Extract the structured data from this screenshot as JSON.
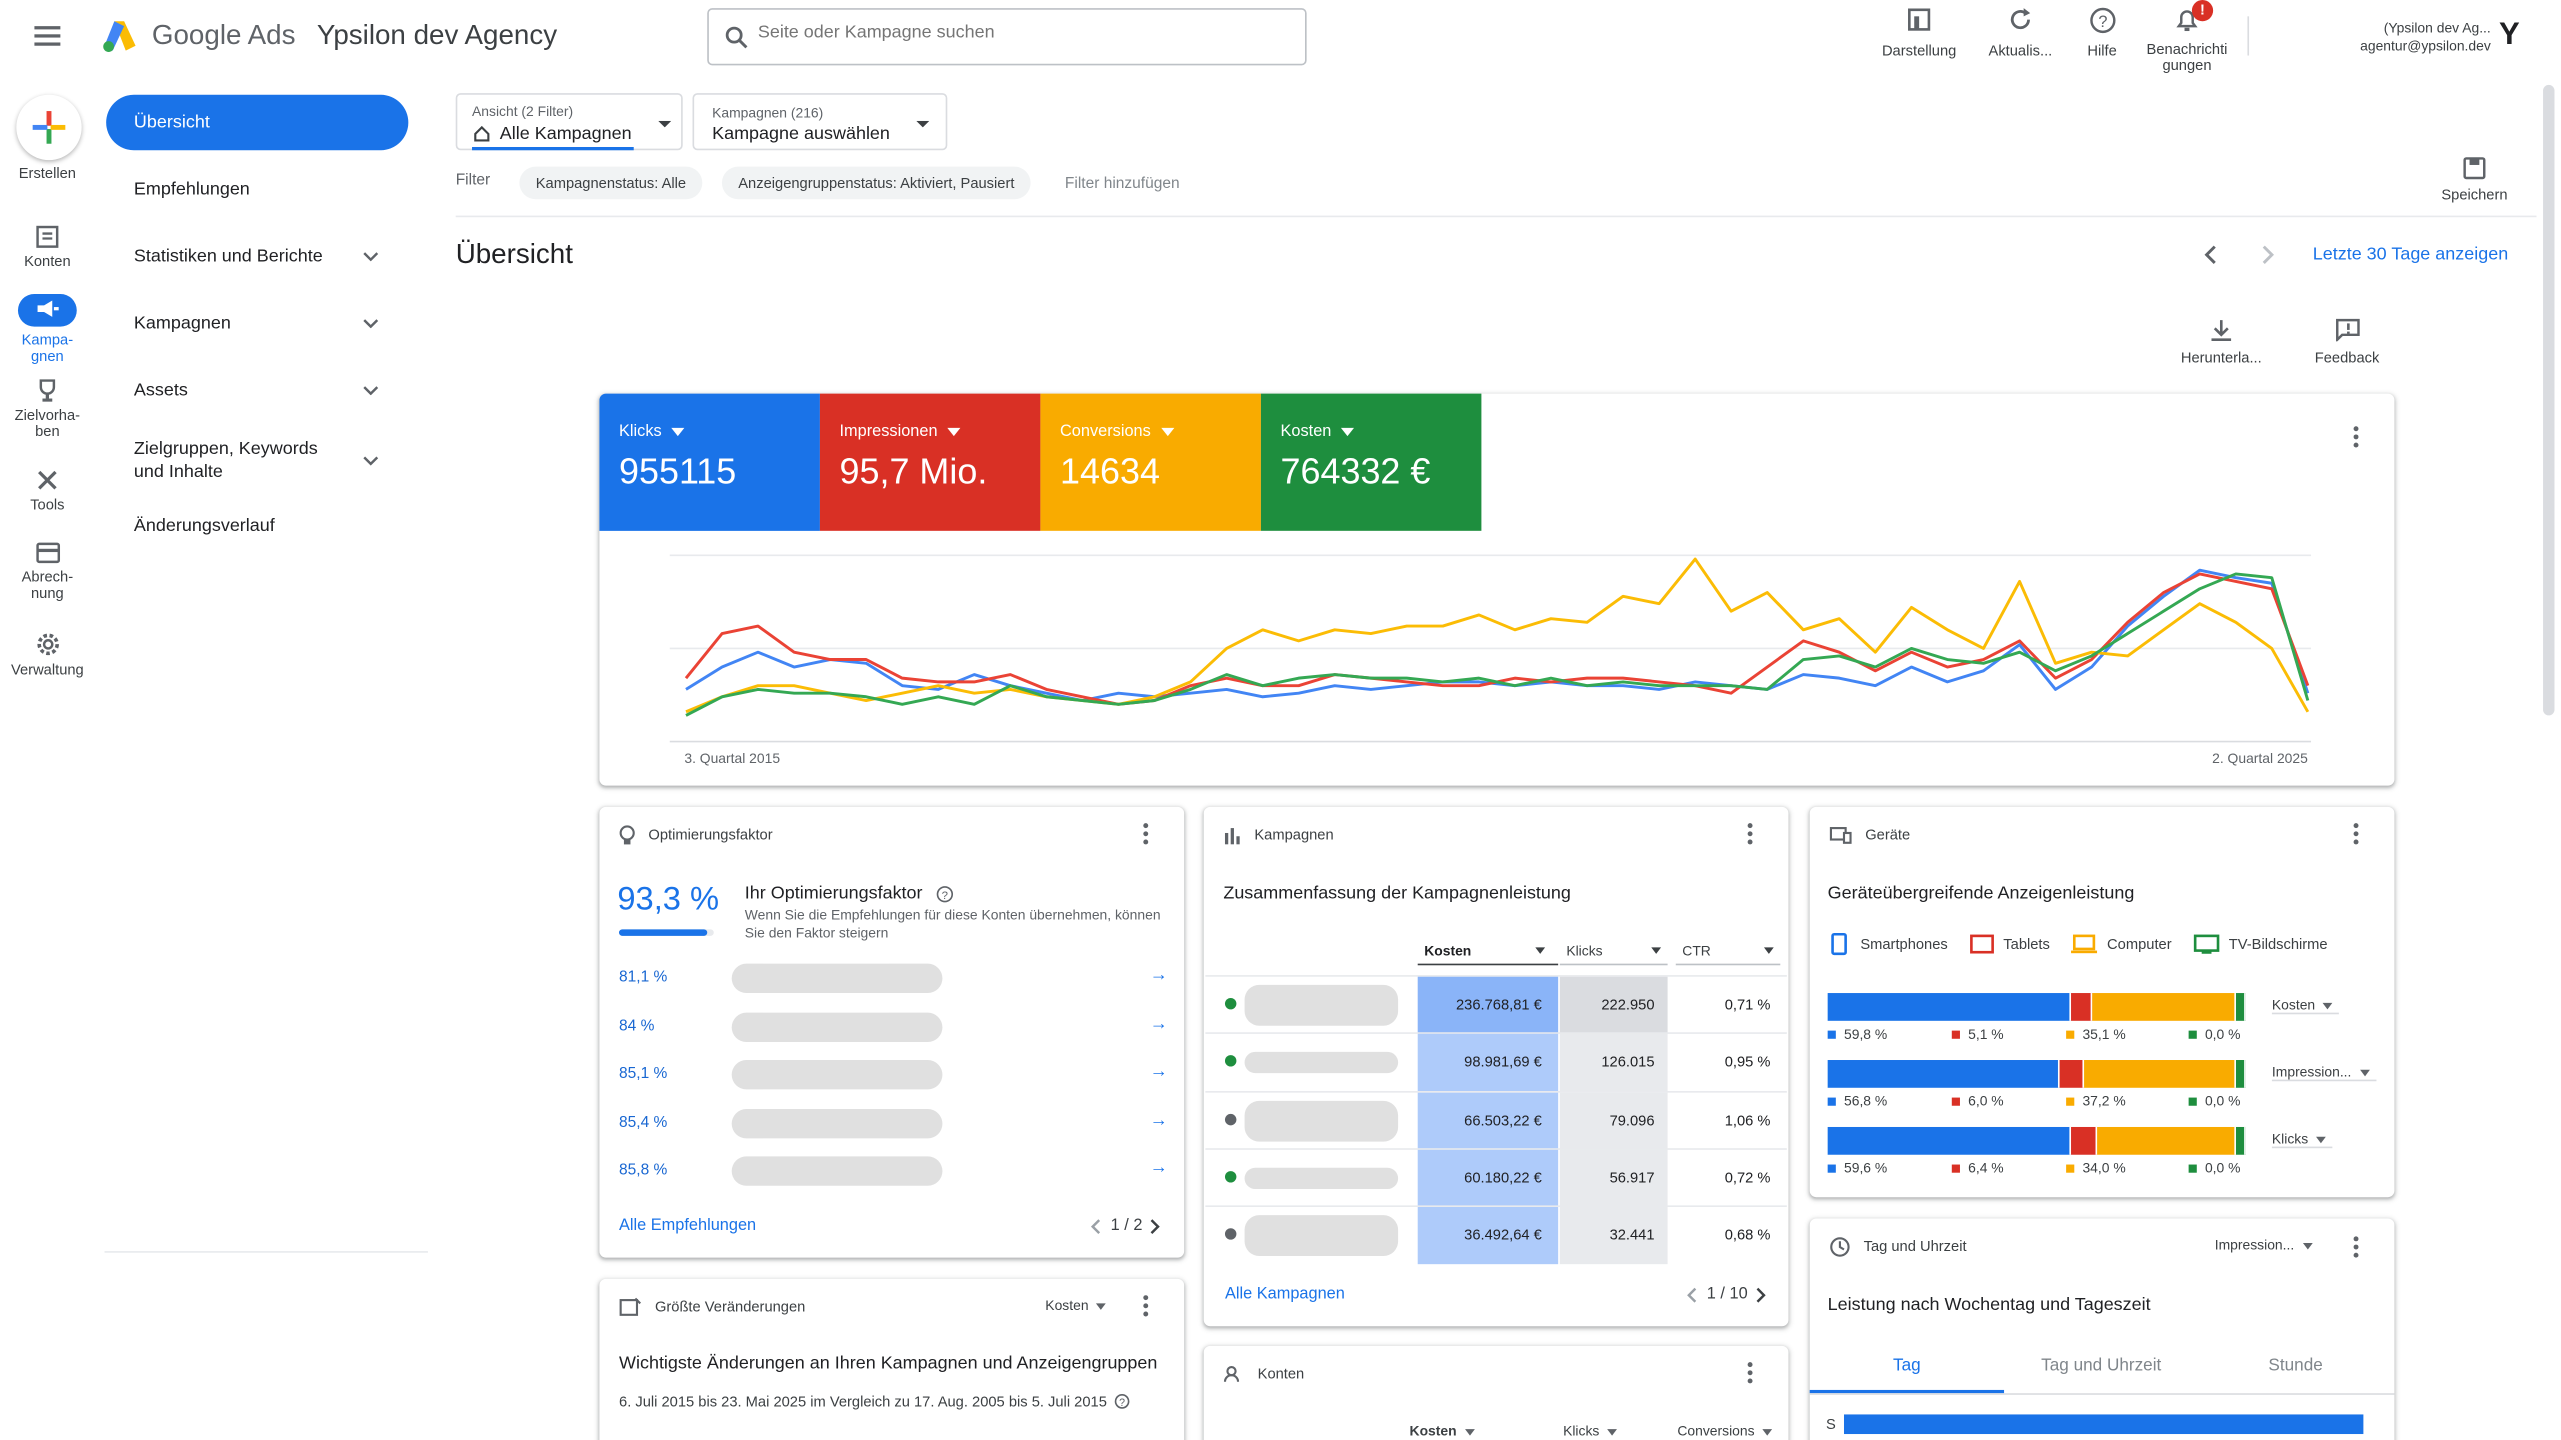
{
  "header": {
    "brand": "Google Ads",
    "account": "Ypsilon dev Agency",
    "search_placeholder": "Seite oder Kampagne suchen",
    "actions": [
      {
        "label": "Darstellung"
      },
      {
        "label": "Aktualis..."
      },
      {
        "label": "Hilfe"
      },
      {
        "label": "Benachrichti gungen",
        "badge": "!"
      }
    ],
    "user_name": "(Ypsilon dev Ag...",
    "user_email": "agentur@ypsilon.dev",
    "avatar": "Y"
  },
  "rail": [
    {
      "label": "Erstellen"
    },
    {
      "label": "Konten"
    },
    {
      "label": "Kampa-gnen"
    },
    {
      "label": "Zielvorha-ben"
    },
    {
      "label": "Tools"
    },
    {
      "label": "Abrech-nung"
    },
    {
      "label": "Verwaltung"
    }
  ],
  "nav": [
    {
      "label": "Übersicht"
    },
    {
      "label": "Empfehlungen"
    },
    {
      "label": "Statistiken und Berichte"
    },
    {
      "label": "Kampagnen"
    },
    {
      "label": "Assets"
    },
    {
      "label": "Zielgruppen, Keywords und Inhalte"
    },
    {
      "label": "Änderungsverlauf"
    }
  ],
  "filters": {
    "view_label": "Ansicht (2 Filter)",
    "view_value": "Alle Kampagnen",
    "campaign_label": "Kampagnen (216)",
    "campaign_value": "Kampagne auswählen",
    "filter_label": "Filter",
    "chips": [
      "Kampagnenstatus: Alle",
      "Anzeigengruppenstatus: Aktiviert, Pausiert"
    ],
    "add_filter": "Filter hinzufügen",
    "save": "Speichern"
  },
  "page": {
    "title": "Übersicht",
    "date_link": "Letzte 30 Tage anzeigen",
    "download": "Herunterla...",
    "feedback": "Feedback"
  },
  "metrics": [
    {
      "label": "Klicks",
      "value": "955115",
      "color": "#1a73e8"
    },
    {
      "label": "Impressionen",
      "value": "95,7 Mio.",
      "color": "#d93025"
    },
    {
      "label": "Conversions",
      "value": "14634",
      "color": "#f9ab00"
    },
    {
      "label": "Kosten",
      "value": "764332 €",
      "color": "#1e8e3e"
    }
  ],
  "chart_data": {
    "type": "line",
    "x_start_label": "3. Quartal 2015",
    "x_end_label": "2. Quartal 2025",
    "ylim": [
      0,
      100
    ],
    "series": [
      {
        "name": "Klicks",
        "color": "#4285f4",
        "values": [
          28,
          40,
          48,
          40,
          44,
          42,
          30,
          28,
          36,
          30,
          26,
          22,
          26,
          24,
          26,
          28,
          24,
          26,
          30,
          28,
          30,
          32,
          32,
          30,
          32,
          30,
          30,
          28,
          32,
          30,
          28,
          36,
          34,
          30,
          40,
          32,
          38,
          52,
          28,
          40,
          62,
          78,
          92,
          88,
          85,
          26
        ]
      },
      {
        "name": "Impressionen",
        "color": "#ea4335",
        "values": [
          34,
          58,
          62,
          48,
          44,
          44,
          34,
          32,
          32,
          36,
          28,
          24,
          20,
          22,
          30,
          34,
          30,
          30,
          36,
          34,
          32,
          30,
          30,
          34,
          32,
          34,
          34,
          32,
          30,
          26,
          40,
          54,
          48,
          38,
          48,
          40,
          44,
          54,
          34,
          44,
          64,
          80,
          90,
          86,
          82,
          30
        ]
      },
      {
        "name": "Conversions",
        "color": "#fbbc05",
        "values": [
          16,
          24,
          30,
          30,
          26,
          22,
          26,
          30,
          26,
          28,
          24,
          22,
          20,
          24,
          32,
          50,
          60,
          54,
          60,
          58,
          62,
          62,
          68,
          60,
          66,
          64,
          78,
          74,
          98,
          70,
          80,
          60,
          66,
          48,
          72,
          60,
          50,
          86,
          42,
          48,
          46,
          60,
          74,
          64,
          50,
          16
        ]
      },
      {
        "name": "Kosten",
        "color": "#34a853",
        "values": [
          14,
          24,
          28,
          26,
          26,
          24,
          20,
          24,
          20,
          30,
          24,
          22,
          20,
          22,
          28,
          36,
          30,
          34,
          36,
          34,
          34,
          32,
          34,
          30,
          34,
          30,
          32,
          30,
          30,
          30,
          28,
          44,
          46,
          40,
          50,
          44,
          42,
          48,
          38,
          46,
          58,
          70,
          82,
          90,
          88,
          22
        ]
      }
    ]
  },
  "optimization": {
    "title": "Optimierungsfaktor",
    "score": "93,3 %",
    "score_value": 0.933,
    "heading": "Ihr Optimierungsfaktor",
    "desc": "Wenn Sie die Empfehlungen für diese Konten übernehmen, können Sie den Faktor steigern",
    "rows": [
      "81,1 %",
      "84 %",
      "85,1 %",
      "85,4 %",
      "85,8 %"
    ],
    "link": "Alle Empfehlungen",
    "pager": "1 / 2"
  },
  "campaigns": {
    "title": "Kampagnen",
    "subtitle": "Zusammenfassung der Kampagnenleistung",
    "columns": [
      "Kosten",
      "Klicks",
      "CTR"
    ],
    "rows": [
      {
        "status": "#1e8e3e",
        "kosten": "236.768,81 €",
        "klicks": "222.950",
        "ctr": "0,71 %"
      },
      {
        "status": "#1e8e3e",
        "kosten": "98.981,69 €",
        "klicks": "126.015",
        "ctr": "0,95 %"
      },
      {
        "status": "#5f6368",
        "kosten": "66.503,22 €",
        "klicks": "79.096",
        "ctr": "1,06 %"
      },
      {
        "status": "#1e8e3e",
        "kosten": "60.180,22 €",
        "klicks": "56.917",
        "ctr": "0,72 %"
      },
      {
        "status": "#5f6368",
        "kosten": "36.492,64 €",
        "klicks": "32.441",
        "ctr": "0,68 %"
      }
    ],
    "link": "Alle Kampagnen",
    "pager": "1 / 10"
  },
  "devices": {
    "title": "Geräte",
    "subtitle": "Geräteübergreifende Anzeigenleistung",
    "legend": [
      {
        "label": "Smartphones",
        "color": "#1a73e8"
      },
      {
        "label": "Tablets",
        "color": "#d93025"
      },
      {
        "label": "Computer",
        "color": "#f9ab00"
      },
      {
        "label": "TV-Bildschirme",
        "color": "#1e8e3e"
      }
    ],
    "bars": [
      {
        "metric": "Kosten",
        "values": [
          59.8,
          5.1,
          35.1,
          0.0
        ],
        "labels": [
          "59,8 %",
          "5,1 %",
          "35,1 %",
          "0,0 %"
        ]
      },
      {
        "metric": "Impression...",
        "values": [
          56.8,
          6.0,
          37.2,
          0.0
        ],
        "labels": [
          "56,8 %",
          "6,0 %",
          "37,2 %",
          "0,0 %"
        ]
      },
      {
        "metric": "Klicks",
        "values": [
          59.6,
          6.4,
          34.0,
          0.0
        ],
        "labels": [
          "59,6 %",
          "6,4 %",
          "34,0 %",
          "0,0 %"
        ]
      }
    ]
  },
  "changes": {
    "title": "Größte Veränderungen",
    "dropdown": "Kosten",
    "heading": "Wichtigste Änderungen an Ihren Kampagnen und Anzeigengruppen",
    "range": "6. Juli 2015 bis 23. Mai 2025 im Vergleich zu 17. Aug. 2005 bis 5. Juli 2015"
  },
  "accounts": {
    "title": "Konten",
    "columns": [
      "Kosten",
      "Klicks",
      "Conversions"
    ]
  },
  "daytime": {
    "title": "Tag und Uhrzeit",
    "dropdown": "Impression...",
    "subtitle": "Leistung nach Wochentag und Tageszeit",
    "tabs": [
      "Tag",
      "Tag und Uhrzeit",
      "Stunde"
    ],
    "row_label": "S"
  }
}
